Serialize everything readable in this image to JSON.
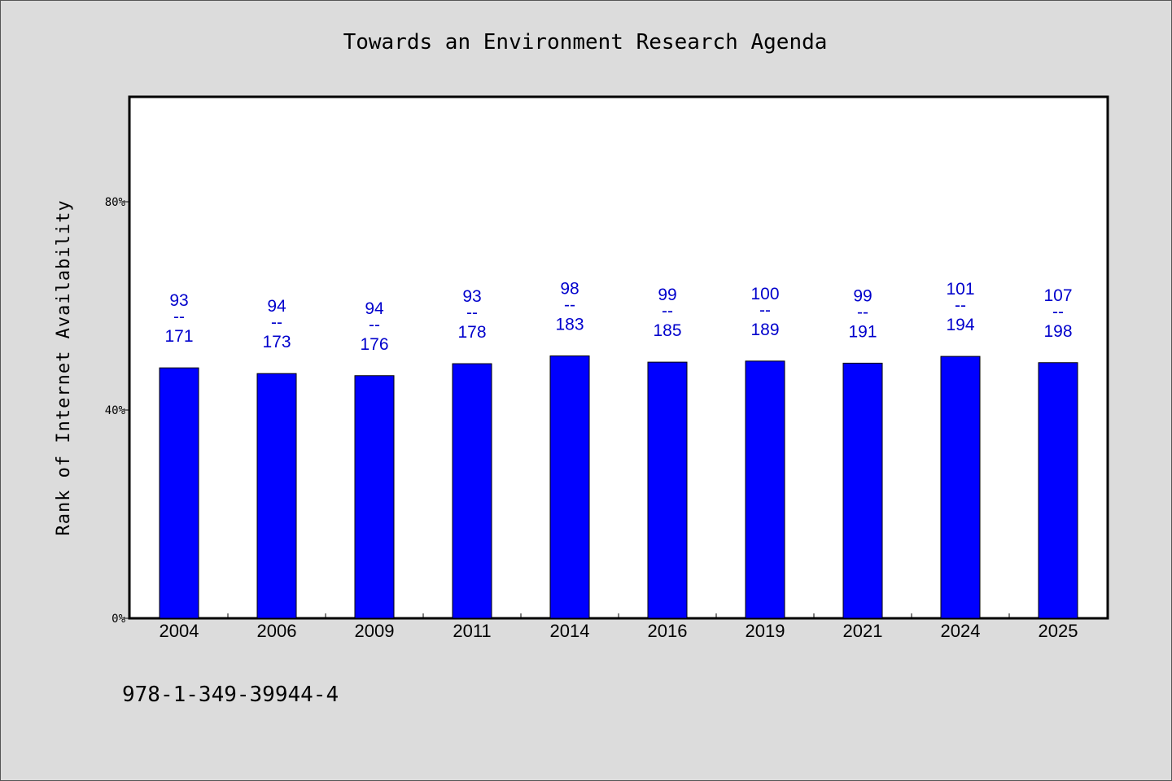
{
  "chart_data": {
    "type": "bar",
    "title": "Towards an Environment Research Agenda",
    "xlabel": "",
    "ylabel": "Rank of Internet Availability",
    "ylim": [
      0,
      100
    ],
    "yticks": [
      0,
      40,
      80
    ],
    "ytick_labels": [
      "0%",
      "40%",
      "80%"
    ],
    "categories": [
      "2004",
      "2006",
      "2009",
      "2011",
      "2014",
      "2016",
      "2019",
      "2021",
      "2024",
      "2025"
    ],
    "series": [
      {
        "values": [
          48.1,
          47.0,
          46.6,
          48.9,
          50.4,
          49.2,
          49.4,
          49.0,
          50.3,
          49.1
        ],
        "color": "#0000ff",
        "labels": [
          {
            "rank": "93",
            "sep": "--",
            "total": "171"
          },
          {
            "rank": "94",
            "sep": "--",
            "total": "173"
          },
          {
            "rank": "94",
            "sep": "--",
            "total": "176"
          },
          {
            "rank": "93",
            "sep": "--",
            "total": "178"
          },
          {
            "rank": "98",
            "sep": "--",
            "total": "183"
          },
          {
            "rank": "99",
            "sep": "--",
            "total": "185"
          },
          {
            "rank": "100",
            "sep": "--",
            "total": "189"
          },
          {
            "rank": "99",
            "sep": "--",
            "total": "191"
          },
          {
            "rank": "101",
            "sep": "--",
            "total": "194"
          },
          {
            "rank": "107",
            "sep": "--",
            "total": "198"
          }
        ]
      }
    ],
    "label_color": "#0000cc",
    "grid": false,
    "legend": "none"
  },
  "footer": {
    "isbn": "978-1-349-39944-4"
  },
  "colors": {
    "background": "#dcdcdc",
    "plot_background": "#ffffff",
    "bar": "#0000ff"
  }
}
